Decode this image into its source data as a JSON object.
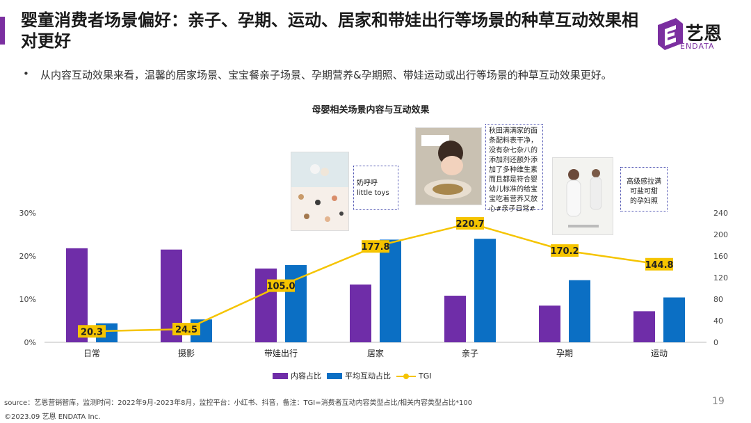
{
  "header": {
    "title": "婴童消费者场景偏好：亲子、孕期、运动、居家和带娃出行等场景的种草互动效果相对更好",
    "bullet": "从内容互动效果来看，温馨的居家场景、宝宝餐亲子场景、孕期营养&孕期照、带娃运动或出行等场景的种草互动效果更好。"
  },
  "logo": {
    "main": "艺恩",
    "sub": "ENDATA"
  },
  "chart_data": {
    "type": "bar",
    "title": "母婴相关场景内容与互动效果",
    "categories": [
      "日常",
      "摄影",
      "带娃出行",
      "居家",
      "亲子",
      "孕期",
      "运动"
    ],
    "series": [
      {
        "name": "内容占比",
        "axis": "left",
        "values": [
          21.8,
          21.5,
          17.1,
          13.4,
          10.8,
          8.5,
          7.2
        ],
        "color": "#6f2da8"
      },
      {
        "name": "平均互动占比",
        "axis": "left",
        "values": [
          4.4,
          5.3,
          17.9,
          23.8,
          24.0,
          14.4,
          10.4
        ],
        "color": "#0b6fc4"
      }
    ],
    "line": {
      "name": "TGI",
      "axis": "right",
      "values": [
        20.3,
        24.5,
        105.0,
        177.8,
        220.7,
        170.2,
        144.8
      ],
      "labels": [
        "20.3",
        "24.5",
        "105.0",
        "177.8",
        "220.7",
        "170.2",
        "144.8"
      ],
      "color": "#f5c400"
    },
    "left_axis": {
      "min": 0,
      "max": 30,
      "ticks": [
        "0%",
        "10%",
        "20%",
        "30%"
      ]
    },
    "right_axis": {
      "min": 0,
      "max": 240,
      "ticks": [
        "0",
        "40",
        "80",
        "120",
        "160",
        "200",
        "240"
      ]
    }
  },
  "callouts": {
    "home": "奶呼呼\nlittle toys",
    "parent": "秋田满满家的面条配料表干净，没有杂七杂八的添加剂还额外添加了多种维生素而且都是符合婴幼儿标准的给宝宝吃着营养又放心#亲子日常#",
    "pregnancy": "高级感拉满\n可盐可甜\n的孕妇照"
  },
  "legend": {
    "content": "内容占比",
    "interaction": "平均互动占比",
    "tgi": "TGI"
  },
  "footer": {
    "source": "source：艺恩营销智库，监测时间：2022年9月-2023年8月，监控平台：小红书、抖音，备注：TGI=消费者互动内容类型占比/相关内容类型占比*100",
    "copyright": "©2023.09  艺恩 ENDATA Inc.",
    "page": "19"
  },
  "colors": {
    "brand": "#7b2fa0",
    "content_bar": "#6f2da8",
    "interaction_bar": "#0b6fc4",
    "tgi_line": "#f5c400"
  }
}
